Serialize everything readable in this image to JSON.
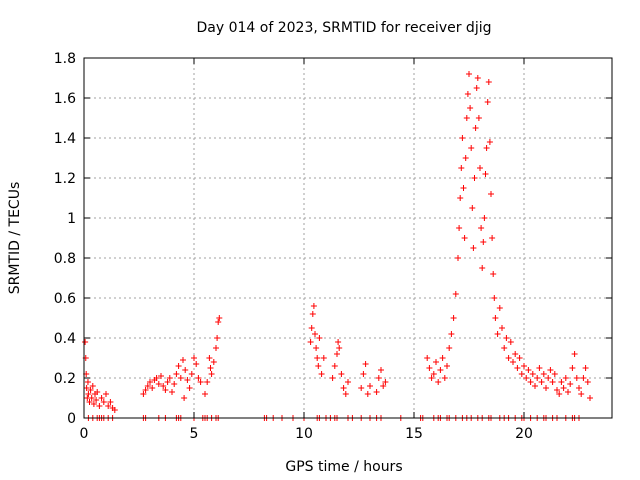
{
  "chart_data": {
    "type": "scatter",
    "title": "Day 014 of 2023, SRMTID for receiver djig",
    "xlabel": "GPS time / hours",
    "ylabel": "SRMTID / TECUs",
    "xlim": [
      0,
      24
    ],
    "ylim": [
      0,
      1.8
    ],
    "grid": true,
    "marker": "+",
    "color": "#ff0000",
    "xticks": [
      0,
      5,
      10,
      15,
      20
    ],
    "xtick_labels": [
      "0",
      "5",
      "10",
      "15",
      "20"
    ],
    "yticks": [
      0,
      0.2,
      0.4,
      0.6,
      0.8,
      1,
      1.2,
      1.4,
      1.6,
      1.8
    ],
    "ytick_labels": [
      "0",
      "0.2",
      "0.4",
      "0.6",
      "0.8",
      "1",
      "1.2",
      "1.4",
      "1.6",
      "1.8"
    ],
    "series": [
      {
        "name": "SRMTID",
        "points": [
          [
            0.05,
            0.38
          ],
          [
            0.08,
            0.3
          ],
          [
            0.1,
            0.22
          ],
          [
            0.12,
            0.15
          ],
          [
            0.15,
            0.1
          ],
          [
            0.18,
            0.18
          ],
          [
            0.2,
            0.12
          ],
          [
            0.25,
            0.08
          ],
          [
            0.3,
            0.14
          ],
          [
            0.35,
            0.1
          ],
          [
            0.4,
            0.16
          ],
          [
            0.45,
            0.07
          ],
          [
            0.5,
            0.12
          ],
          [
            0.55,
            0.09
          ],
          [
            0.6,
            0.13
          ],
          [
            0.7,
            0.06
          ],
          [
            0.8,
            0.1
          ],
          [
            0.9,
            0.08
          ],
          [
            1.0,
            0.12
          ],
          [
            1.1,
            0.06
          ],
          [
            1.2,
            0.08
          ],
          [
            1.3,
            0.05
          ],
          [
            1.4,
            0.04
          ],
          [
            2.7,
            0.12
          ],
          [
            2.8,
            0.14
          ],
          [
            2.9,
            0.16
          ],
          [
            3.0,
            0.18
          ],
          [
            3.1,
            0.15
          ],
          [
            3.2,
            0.19
          ],
          [
            3.3,
            0.2
          ],
          [
            3.4,
            0.17
          ],
          [
            3.5,
            0.21
          ],
          [
            3.6,
            0.16
          ],
          [
            3.7,
            0.14
          ],
          [
            3.8,
            0.18
          ],
          [
            3.9,
            0.2
          ],
          [
            4.0,
            0.13
          ],
          [
            4.1,
            0.17
          ],
          [
            4.2,
            0.22
          ],
          [
            4.3,
            0.26
          ],
          [
            4.4,
            0.2
          ],
          [
            4.5,
            0.29
          ],
          [
            4.55,
            0.1
          ],
          [
            4.6,
            0.24
          ],
          [
            4.7,
            0.19
          ],
          [
            4.8,
            0.15
          ],
          [
            4.9,
            0.22
          ],
          [
            5.0,
            0.3
          ],
          [
            5.1,
            0.27
          ],
          [
            5.2,
            0.2
          ],
          [
            5.3,
            0.18
          ],
          [
            5.5,
            0.12
          ],
          [
            5.6,
            0.18
          ],
          [
            5.7,
            0.3
          ],
          [
            5.75,
            0.25
          ],
          [
            5.8,
            0.22
          ],
          [
            5.9,
            0.28
          ],
          [
            6.0,
            0.35
          ],
          [
            6.05,
            0.4
          ],
          [
            6.1,
            0.48
          ],
          [
            6.15,
            0.5
          ],
          [
            10.3,
            0.38
          ],
          [
            10.35,
            0.45
          ],
          [
            10.4,
            0.52
          ],
          [
            10.45,
            0.56
          ],
          [
            10.5,
            0.42
          ],
          [
            10.55,
            0.35
          ],
          [
            10.6,
            0.3
          ],
          [
            10.65,
            0.26
          ],
          [
            10.7,
            0.4
          ],
          [
            10.8,
            0.22
          ],
          [
            10.9,
            0.3
          ],
          [
            11.3,
            0.2
          ],
          [
            11.4,
            0.26
          ],
          [
            11.5,
            0.32
          ],
          [
            11.55,
            0.38
          ],
          [
            11.6,
            0.35
          ],
          [
            11.7,
            0.22
          ],
          [
            11.8,
            0.15
          ],
          [
            11.9,
            0.12
          ],
          [
            12.0,
            0.18
          ],
          [
            12.6,
            0.15
          ],
          [
            12.7,
            0.22
          ],
          [
            12.8,
            0.27
          ],
          [
            12.9,
            0.12
          ],
          [
            13.0,
            0.16
          ],
          [
            13.3,
            0.13
          ],
          [
            13.4,
            0.2
          ],
          [
            13.5,
            0.24
          ],
          [
            13.6,
            0.16
          ],
          [
            13.7,
            0.18
          ],
          [
            15.6,
            0.3
          ],
          [
            15.7,
            0.25
          ],
          [
            15.8,
            0.2
          ],
          [
            15.9,
            0.22
          ],
          [
            16.0,
            0.28
          ],
          [
            16.1,
            0.18
          ],
          [
            16.2,
            0.24
          ],
          [
            16.3,
            0.3
          ],
          [
            16.4,
            0.2
          ],
          [
            16.5,
            0.26
          ],
          [
            16.6,
            0.35
          ],
          [
            16.7,
            0.42
          ],
          [
            16.8,
            0.5
          ],
          [
            16.9,
            0.62
          ],
          [
            17.0,
            0.8
          ],
          [
            17.05,
            0.95
          ],
          [
            17.1,
            1.1
          ],
          [
            17.15,
            1.25
          ],
          [
            17.2,
            1.4
          ],
          [
            17.25,
            1.15
          ],
          [
            17.3,
            0.9
          ],
          [
            17.35,
            1.3
          ],
          [
            17.4,
            1.5
          ],
          [
            17.45,
            1.62
          ],
          [
            17.5,
            1.72
          ],
          [
            17.55,
            1.55
          ],
          [
            17.6,
            1.35
          ],
          [
            17.65,
            1.05
          ],
          [
            17.7,
            0.85
          ],
          [
            17.75,
            1.2
          ],
          [
            17.8,
            1.45
          ],
          [
            17.85,
            1.65
          ],
          [
            17.9,
            1.7
          ],
          [
            17.95,
            1.5
          ],
          [
            18.0,
            1.25
          ],
          [
            18.05,
            0.95
          ],
          [
            18.1,
            0.75
          ],
          [
            18.15,
            0.88
          ],
          [
            18.2,
            1.0
          ],
          [
            18.25,
            1.22
          ],
          [
            18.3,
            1.35
          ],
          [
            18.35,
            1.58
          ],
          [
            18.4,
            1.68
          ],
          [
            18.45,
            1.38
          ],
          [
            18.5,
            1.12
          ],
          [
            18.55,
            0.9
          ],
          [
            18.6,
            0.72
          ],
          [
            18.65,
            0.6
          ],
          [
            18.7,
            0.5
          ],
          [
            18.8,
            0.42
          ],
          [
            18.9,
            0.55
          ],
          [
            19.0,
            0.45
          ],
          [
            19.1,
            0.35
          ],
          [
            19.2,
            0.4
          ],
          [
            19.3,
            0.3
          ],
          [
            19.4,
            0.38
          ],
          [
            19.5,
            0.28
          ],
          [
            19.6,
            0.32
          ],
          [
            19.7,
            0.25
          ],
          [
            19.8,
            0.3
          ],
          [
            19.9,
            0.22
          ],
          [
            20.0,
            0.26
          ],
          [
            20.1,
            0.2
          ],
          [
            20.2,
            0.24
          ],
          [
            20.3,
            0.18
          ],
          [
            20.4,
            0.22
          ],
          [
            20.5,
            0.16
          ],
          [
            20.6,
            0.2
          ],
          [
            20.7,
            0.25
          ],
          [
            20.8,
            0.18
          ],
          [
            20.9,
            0.22
          ],
          [
            21.0,
            0.15
          ],
          [
            21.1,
            0.2
          ],
          [
            21.2,
            0.24
          ],
          [
            21.3,
            0.18
          ],
          [
            21.4,
            0.22
          ],
          [
            21.5,
            0.14
          ],
          [
            21.6,
            0.12
          ],
          [
            21.7,
            0.18
          ],
          [
            21.8,
            0.15
          ],
          [
            21.9,
            0.2
          ],
          [
            22.0,
            0.13
          ],
          [
            22.1,
            0.17
          ],
          [
            22.2,
            0.25
          ],
          [
            22.3,
            0.32
          ],
          [
            22.4,
            0.2
          ],
          [
            22.5,
            0.15
          ],
          [
            22.6,
            0.12
          ],
          [
            22.7,
            0.2
          ],
          [
            22.8,
            0.25
          ],
          [
            22.9,
            0.18
          ],
          [
            23.0,
            0.1
          ]
        ]
      }
    ],
    "zero_points_x": [
      0.2,
      0.4,
      0.6,
      0.7,
      0.8,
      0.9,
      1.1,
      1.3,
      2.7,
      2.8,
      3.4,
      3.7,
      4.2,
      4.3,
      4.4,
      5.0,
      5.4,
      5.5,
      5.6,
      5.8,
      6.0,
      6.1,
      8.2,
      8.3,
      8.6,
      9.0,
      9.5,
      10.0,
      10.6,
      10.7,
      11.0,
      11.2,
      11.4,
      11.5,
      12.0,
      12.2,
      12.6,
      13.0,
      13.3,
      13.5,
      14.4,
      15.3,
      15.4,
      15.9,
      16.1,
      16.2,
      16.5,
      16.6,
      16.9,
      17.2,
      17.4,
      17.6,
      17.9,
      18.1,
      18.4,
      18.5,
      18.9,
      19.1,
      19.3,
      19.6,
      19.9,
      20.0,
      20.3,
      20.6,
      20.9,
      21.0,
      21.3,
      21.5,
      21.9,
      22.2,
      22.3,
      22.5
    ]
  }
}
